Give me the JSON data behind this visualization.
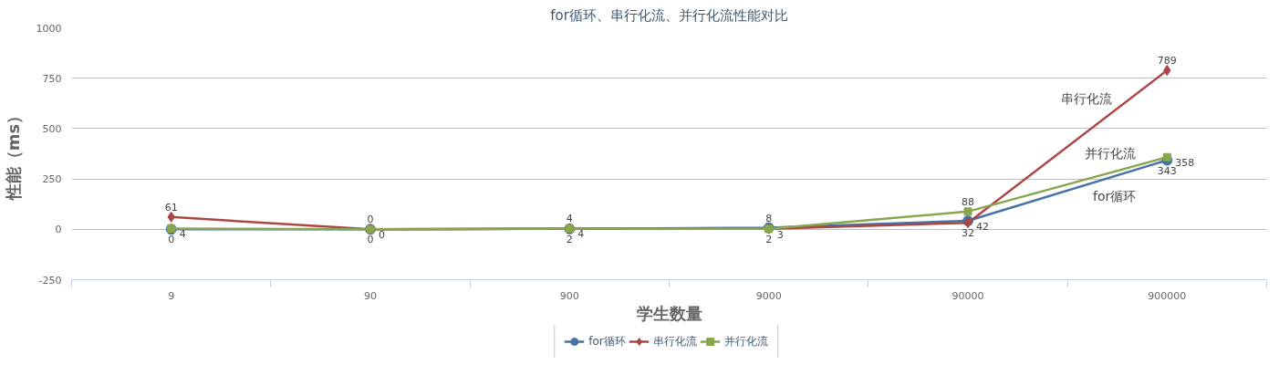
{
  "chart_data": {
    "type": "line",
    "title": "for循环、串行化流、并行化流性能对比",
    "xlabel": "学生数量",
    "ylabel": "性能（ms）",
    "categories": [
      "9",
      "90",
      "900",
      "9000",
      "90000",
      "900000"
    ],
    "series": [
      {
        "name": "for循环",
        "color": "#4572a7",
        "marker": "circle",
        "values": [
          0,
          0,
          2,
          8,
          42,
          343
        ]
      },
      {
        "name": "串行化流",
        "color": "#aa4643",
        "marker": "diamond",
        "values": [
          61,
          0,
          4,
          3,
          32,
          789
        ]
      },
      {
        "name": "并行化流",
        "color": "#89a54e",
        "marker": "square",
        "values": [
          4,
          0,
          4,
          2,
          88,
          358
        ]
      }
    ],
    "ylim": [
      -250,
      1000
    ],
    "yticks": [
      -250,
      0,
      250,
      500,
      750,
      1000
    ],
    "grid": "y",
    "legend": "bottom",
    "data_labels": true
  }
}
